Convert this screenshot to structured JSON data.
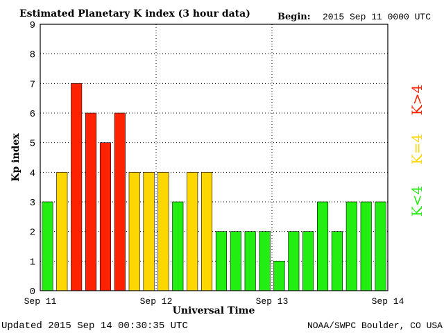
{
  "chart_data": {
    "type": "bar",
    "title": "Estimated Planetary K index (3 hour data)",
    "begin_label": "Begin:",
    "begin_value": "2015 Sep 11 0000 UTC",
    "xlabel": "Universal Time",
    "ylabel": "Kp index",
    "ylim": [
      0,
      9
    ],
    "yticks": [
      "0",
      "1",
      "2",
      "3",
      "4",
      "5",
      "6",
      "7",
      "8",
      "9"
    ],
    "xticks": [
      "Sep 11",
      "Sep 12",
      "Sep 13",
      "Sep 14"
    ],
    "grid": true,
    "values": [
      3,
      4,
      7,
      6,
      5,
      6,
      4,
      4,
      4,
      3,
      4,
      4,
      2,
      2,
      2,
      2,
      1,
      2,
      2,
      3,
      2,
      3,
      3,
      3
    ],
    "colors": {
      "low": "#22ee11",
      "equal": "#ffd700",
      "high": "#ff2200"
    },
    "legend": [
      {
        "label": "K>4",
        "color": "#ff2200"
      },
      {
        "label": "K=4",
        "color": "#ffd700"
      },
      {
        "label": "K<4",
        "color": "#22ee11"
      }
    ],
    "legend_placement": "right"
  },
  "footer": {
    "updated": "Updated 2015 Sep 14 00:30:35 UTC",
    "source": "NOAA/SWPC Boulder, CO USA"
  }
}
